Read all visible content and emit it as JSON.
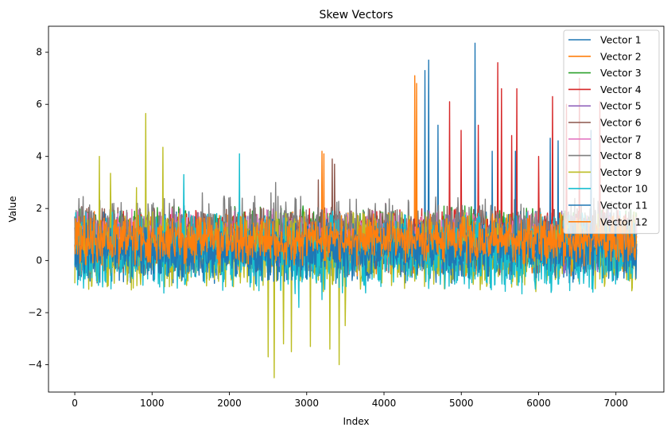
{
  "chart_data": {
    "type": "line",
    "title": "Skew Vectors",
    "xlabel": "Index",
    "ylabel": "Value",
    "xlim": [
      -340,
      7620
    ],
    "ylim": [
      -5.05,
      9.0
    ],
    "xticks": [
      0,
      1000,
      2000,
      3000,
      4000,
      5000,
      6000,
      7000
    ],
    "yticks": [
      -4,
      -2,
      0,
      2,
      4,
      6,
      8
    ],
    "ytick_labels": [
      "−4",
      "−2",
      "0",
      "2",
      "4",
      "6",
      "8"
    ],
    "n_points": 7270,
    "grid": false,
    "legend_position": "top-right",
    "series": [
      {
        "name": "Vector 1",
        "color": "#1f77b4",
        "base_range": [
          -0.9,
          1.9
        ],
        "spikes": [
          [
            4530,
            7.3
          ],
          [
            4580,
            7.7
          ],
          [
            5180,
            8.35
          ],
          [
            4700,
            5.2
          ],
          [
            5400,
            4.2
          ]
        ]
      },
      {
        "name": "Vector 2",
        "color": "#ff7f0e",
        "base_range": [
          -0.6,
          1.9
        ],
        "spikes": [
          [
            4400,
            7.1
          ],
          [
            3200,
            4.2
          ]
        ]
      },
      {
        "name": "Vector 3",
        "color": "#2ca02c",
        "base_range": [
          -0.3,
          2.1
        ],
        "spikes": [
          [
            2950,
            2.1
          ],
          [
            800,
            2.3
          ]
        ]
      },
      {
        "name": "Vector 4",
        "color": "#d62728",
        "base_range": [
          0.0,
          2.0
        ],
        "spikes": [
          [
            4850,
            6.1
          ],
          [
            5470,
            7.6
          ],
          [
            5720,
            6.6
          ],
          [
            6530,
            7.0
          ],
          [
            6790,
            6.1
          ],
          [
            5220,
            5.2
          ],
          [
            5520,
            6.6
          ],
          [
            6180,
            6.3
          ],
          [
            6360,
            6.0
          ],
          [
            5000,
            5.0
          ],
          [
            5650,
            4.8
          ],
          [
            6000,
            4.0
          ]
        ]
      },
      {
        "name": "Vector 5",
        "color": "#9467bd",
        "base_range": [
          -0.5,
          1.8
        ],
        "spikes": [
          [
            6900,
            2.0
          ],
          [
            6300,
            1.9
          ]
        ]
      },
      {
        "name": "Vector 6",
        "color": "#8c564b",
        "base_range": [
          -0.6,
          2.1
        ],
        "spikes": [
          [
            3330,
            3.9
          ],
          [
            3150,
            3.1
          ],
          [
            3360,
            3.7
          ]
        ]
      },
      {
        "name": "Vector 7",
        "color": "#e377c2",
        "base_range": [
          -0.2,
          2.0
        ],
        "spikes": [
          [
            4020,
            2.2
          ],
          [
            3860,
            1.9
          ]
        ]
      },
      {
        "name": "Vector 8",
        "color": "#7f7f7f",
        "base_range": [
          -0.5,
          2.5
        ],
        "spikes": [
          [
            2600,
            3.0
          ],
          [
            2130,
            2.8
          ],
          [
            2540,
            2.6
          ],
          [
            1650,
            2.6
          ]
        ]
      },
      {
        "name": "Vector 9",
        "color": "#bcbd22",
        "base_range": [
          -1.2,
          1.9
        ],
        "spikes": [
          [
            920,
            5.65
          ],
          [
            1140,
            4.35
          ],
          [
            320,
            4.0
          ],
          [
            460,
            3.35
          ],
          [
            800,
            2.8
          ],
          [
            2580,
            -4.5
          ],
          [
            2500,
            -3.7
          ],
          [
            3420,
            -4.0
          ],
          [
            3500,
            -2.5
          ],
          [
            2800,
            -3.5
          ],
          [
            3050,
            -3.3
          ],
          [
            3300,
            -3.4
          ],
          [
            2700,
            -3.2
          ]
        ]
      },
      {
        "name": "Vector 10",
        "color": "#17becf",
        "base_range": [
          -1.3,
          1.9
        ],
        "spikes": [
          [
            2130,
            4.1
          ],
          [
            1410,
            3.3
          ],
          [
            2900,
            -1.8
          ],
          [
            3200,
            -1.5
          ]
        ]
      },
      {
        "name": "Vector 11",
        "color": "#1f77b4",
        "base_range": [
          -0.8,
          1.6
        ],
        "spikes": [
          [
            6150,
            4.7
          ],
          [
            6250,
            4.6
          ],
          [
            6680,
            5.0
          ],
          [
            5700,
            4.2
          ]
        ]
      },
      {
        "name": "Vector 12",
        "color": "#ff7f0e",
        "base_range": [
          -0.2,
          1.8
        ],
        "spikes": [
          [
            3220,
            4.1
          ],
          [
            4420,
            6.8
          ]
        ]
      }
    ]
  }
}
